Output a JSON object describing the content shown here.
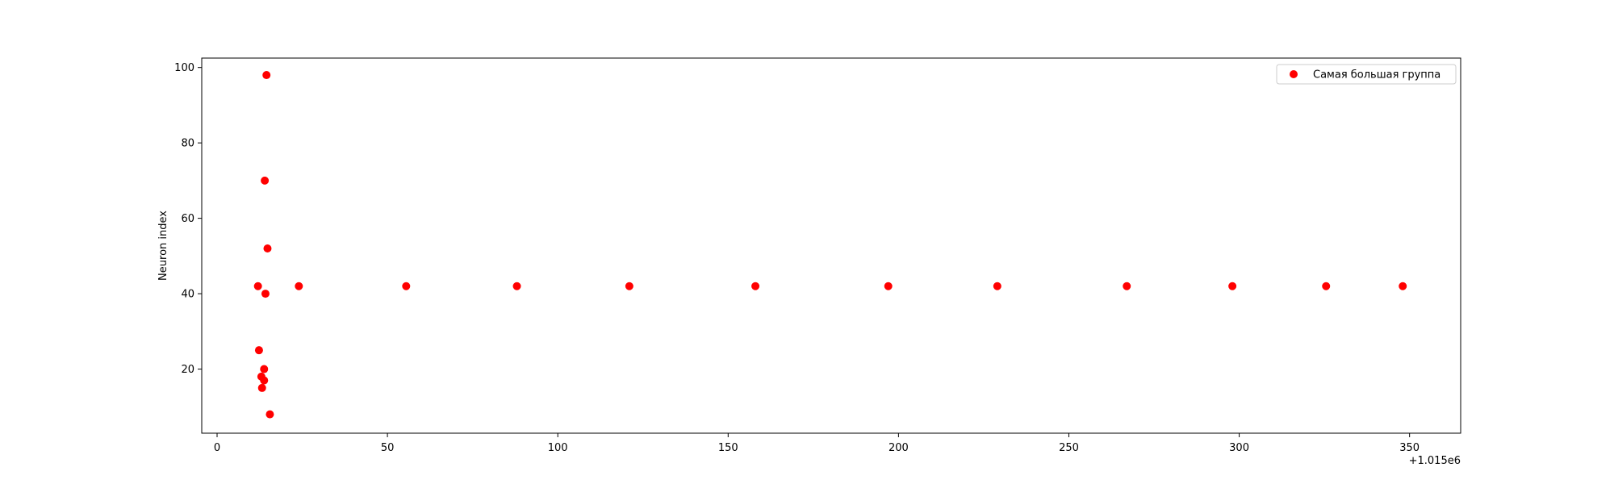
{
  "chart_data": {
    "type": "scatter",
    "title": "",
    "xlabel": "",
    "ylabel": "Neuron index",
    "x_offset_text": "+1.015e6",
    "xlim": [
      -4.5,
      365
    ],
    "ylim": [
      3,
      102.5
    ],
    "x_ticks": [
      0,
      50,
      100,
      150,
      200,
      250,
      300,
      350
    ],
    "y_ticks": [
      20,
      40,
      60,
      80,
      100
    ],
    "grid": false,
    "legend_position": "top-right",
    "series": [
      {
        "name": "Самая большая группа",
        "color": "#ff0000",
        "points": [
          {
            "x": 12.0,
            "y": 42
          },
          {
            "x": 12.3,
            "y": 25
          },
          {
            "x": 13.0,
            "y": 18
          },
          {
            "x": 13.2,
            "y": 15
          },
          {
            "x": 13.8,
            "y": 17
          },
          {
            "x": 13.8,
            "y": 20
          },
          {
            "x": 14.0,
            "y": 70
          },
          {
            "x": 14.2,
            "y": 40
          },
          {
            "x": 14.5,
            "y": 98
          },
          {
            "x": 14.8,
            "y": 52
          },
          {
            "x": 15.5,
            "y": 8
          },
          {
            "x": 24.0,
            "y": 42
          },
          {
            "x": 55.5,
            "y": 42
          },
          {
            "x": 88.0,
            "y": 42
          },
          {
            "x": 121.0,
            "y": 42
          },
          {
            "x": 158.0,
            "y": 42
          },
          {
            "x": 197.0,
            "y": 42
          },
          {
            "x": 229.0,
            "y": 42
          },
          {
            "x": 267.0,
            "y": 42
          },
          {
            "x": 298.0,
            "y": 42
          },
          {
            "x": 325.5,
            "y": 42
          },
          {
            "x": 348.0,
            "y": 42
          }
        ]
      }
    ]
  }
}
